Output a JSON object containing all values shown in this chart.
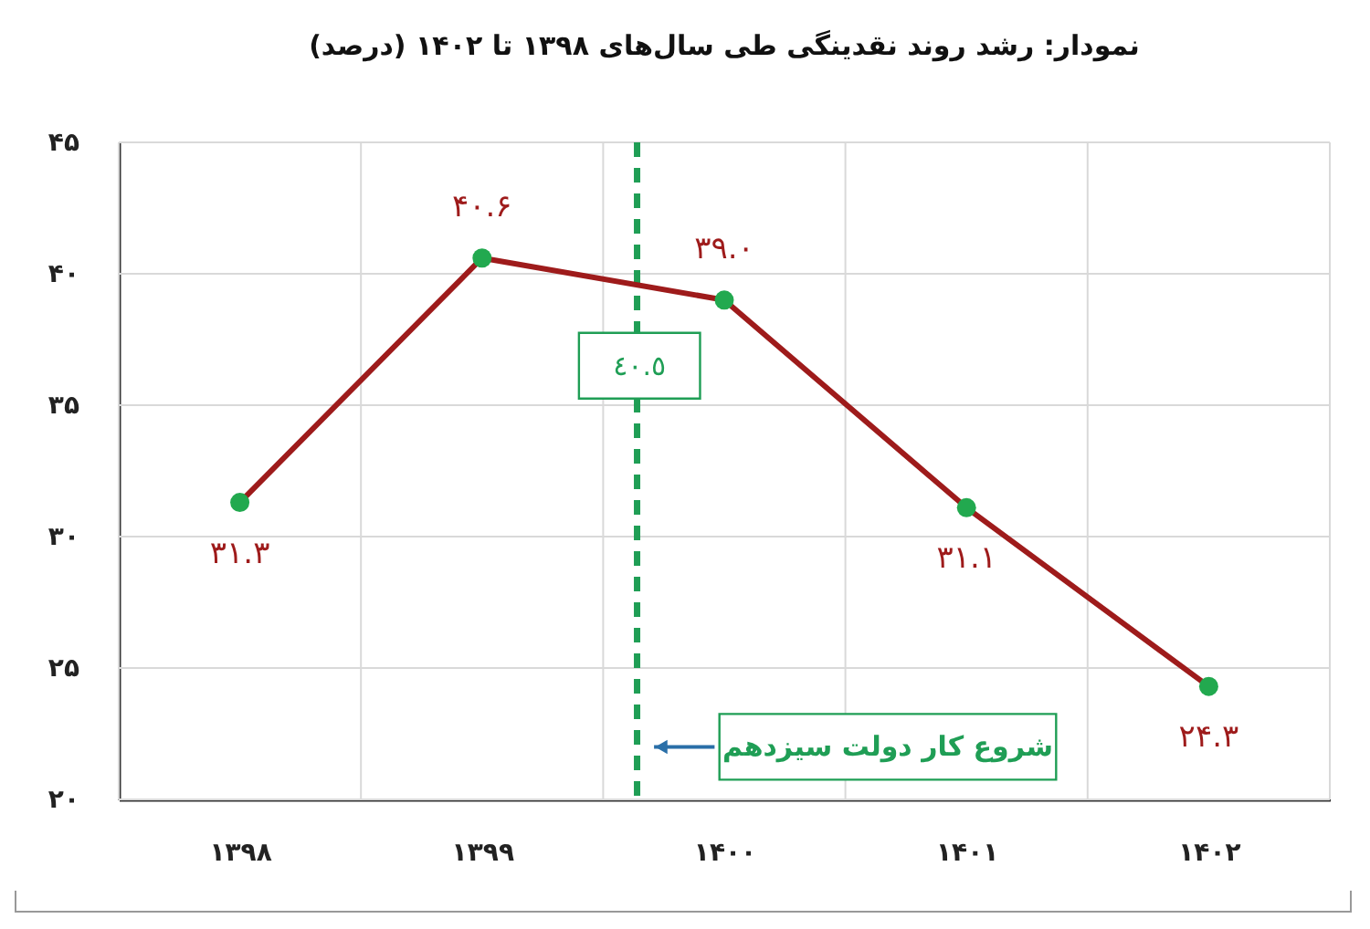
{
  "chart_data": {
    "type": "line",
    "title": "نمودار: رشد روند نقدینگی طی سال‌های ۱۳۹۸ تا ۱۴۰۲ (درصد)",
    "x": [
      1398,
      1399,
      1400,
      1401,
      1402
    ],
    "xlim": [
      1397.5,
      1402.5
    ],
    "xticks": [
      {
        "value": 1397.5,
        "label": null
      },
      {
        "value": 1398,
        "label": "۱۳۹۸"
      },
      {
        "value": 1398.5,
        "label": null
      },
      {
        "value": 1399,
        "label": "۱۳۹۹"
      },
      {
        "value": 1399.5,
        "label": null
      },
      {
        "value": 1400,
        "label": "۱۴۰۰"
      },
      {
        "value": 1400.5,
        "label": null
      },
      {
        "value": 1401,
        "label": "۱۴۰۱"
      },
      {
        "value": 1401.5,
        "label": null
      },
      {
        "value": 1402,
        "label": "۱۴۰۲"
      },
      {
        "value": 1402.5,
        "label": null
      }
    ],
    "ylim": [
      20,
      45
    ],
    "yticks": [
      {
        "value": 20,
        "label": "۲۰"
      },
      {
        "value": 25,
        "label": "۲۵"
      },
      {
        "value": 30,
        "label": "۳۰"
      },
      {
        "value": 35,
        "label": "۳۵"
      },
      {
        "value": 40,
        "label": "۴۰"
      },
      {
        "value": 45,
        "label": "۴۵"
      }
    ],
    "grid": true,
    "marker": "circle",
    "line_style": "solid",
    "series": [
      {
        "color": "#9e1b1b",
        "colors": [
          "#22a94f",
          "#22a94f",
          "#22a94f",
          "#22a94f",
          "#22a94f"
        ],
        "values": [
          31.3,
          40.6,
          39.0,
          31.1,
          24.3
        ],
        "value_labels": [
          "۳۱.۳",
          "۴۰.۶",
          "۳۹.۰",
          "۳۱.۱",
          "۲۴.۳"
        ]
      }
    ],
    "ref_lines": [
      {
        "axis": "x",
        "value": 1399.64,
        "label": "شروع کار دولت سیزدهم",
        "color": "#1f9e55",
        "line_style": "dashed"
      }
    ],
    "annotations": [
      "٤٠.٥"
    ]
  }
}
